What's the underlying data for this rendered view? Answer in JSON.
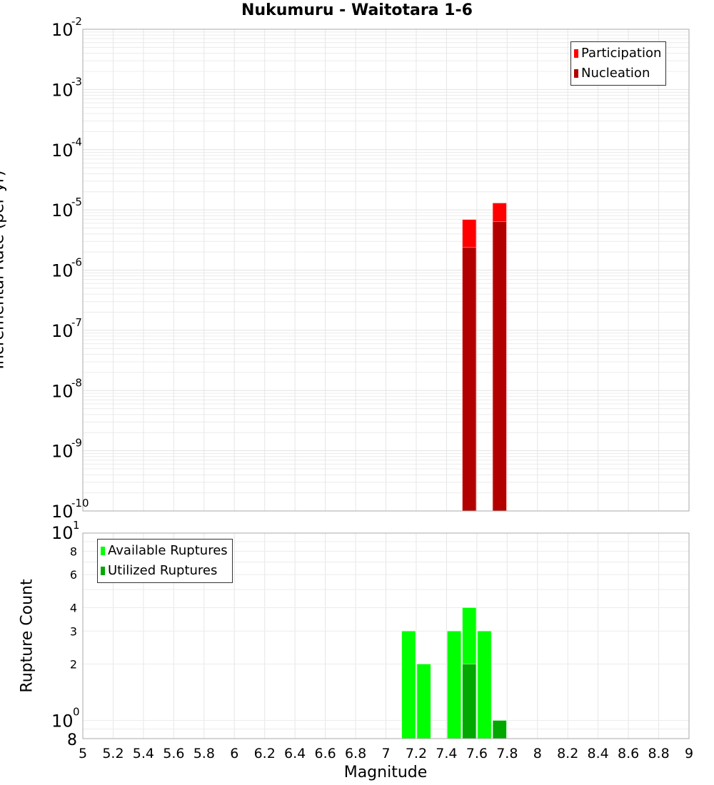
{
  "title": "Nukumuru - Waitotara 1-6",
  "chart_data": [
    {
      "type": "bar",
      "title": "Nukumuru - Waitotara 1-6",
      "xlabel": "Magnitude",
      "ylabel": "Incremental Rate (per yr)",
      "yscale": "log",
      "xlim": [
        5,
        9
      ],
      "ylim": [
        1e-10,
        0.01
      ],
      "grid": true,
      "legend_position": "top-right",
      "bar_width": 0.1,
      "series": [
        {
          "name": "Participation",
          "color": "#ff0000",
          "x": [
            7.55,
            7.75
          ],
          "values": [
            6.9e-06,
            1.3e-05
          ]
        },
        {
          "name": "Nucleation",
          "color": "#b20000",
          "x": [
            7.55,
            7.75
          ],
          "values": [
            2.4e-06,
            6.4e-06
          ]
        }
      ]
    },
    {
      "type": "bar",
      "xlabel": "Magnitude",
      "ylabel": "Rupture Count",
      "yscale": "log",
      "xlim": [
        5,
        9
      ],
      "ylim": [
        0.8,
        10
      ],
      "grid": true,
      "legend_position": "top-left",
      "bar_width": 0.1,
      "series": [
        {
          "name": "Available Ruptures",
          "color": "#00ff00",
          "x": [
            7.15,
            7.25,
            7.45,
            7.55,
            7.65
          ],
          "values": [
            3,
            2,
            3,
            4,
            3
          ]
        },
        {
          "name": "Utilized Ruptures",
          "color": "#00a800",
          "x": [
            7.55,
            7.75
          ],
          "values": [
            2,
            1
          ]
        }
      ]
    }
  ],
  "axes": {
    "top_ylabel": "Incremental Rate (per yr)",
    "bottom_ylabel": "Rupture Count",
    "xlabel": "Magnitude",
    "x_ticks": [
      "5",
      "5.2",
      "5.4",
      "5.6",
      "5.8",
      "6",
      "6.2",
      "6.4",
      "6.6",
      "6.8",
      "7",
      "7.2",
      "7.4",
      "7.6",
      "7.8",
      "8",
      "8.2",
      "8.4",
      "8.6",
      "8.8",
      "9"
    ],
    "top_y_exponents": [
      "-2",
      "-3",
      "-4",
      "-5",
      "-6",
      "-7",
      "-8",
      "-9",
      "-10"
    ],
    "bottom_y_ticks": [
      "8",
      "6",
      "4",
      "3",
      "2",
      "8"
    ]
  },
  "legend_top": [
    {
      "label": "Participation",
      "color": "#ff0000"
    },
    {
      "label": "Nucleation",
      "color": "#b20000"
    }
  ],
  "legend_bottom": [
    {
      "label": "Available Ruptures",
      "color": "#00ff00"
    },
    {
      "label": "Utilized Ruptures",
      "color": "#00a800"
    }
  ]
}
